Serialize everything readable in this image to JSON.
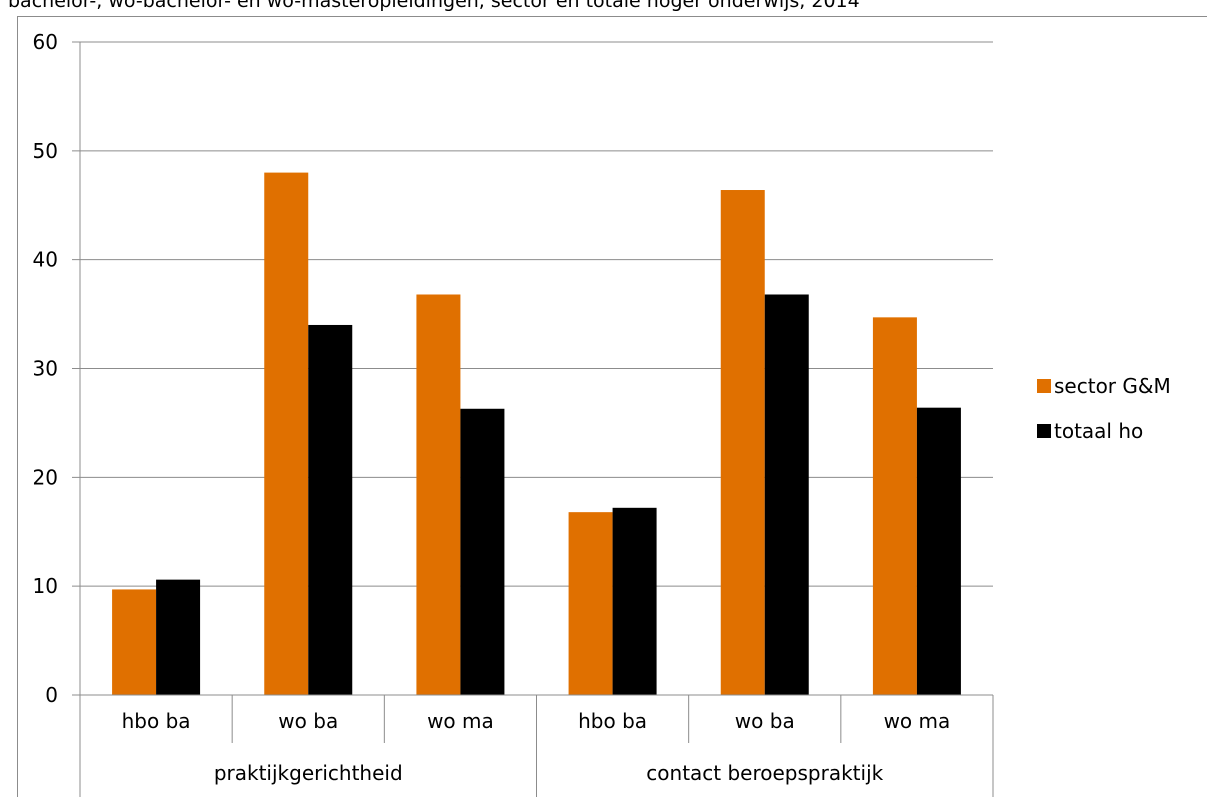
{
  "chart_data": {
    "type": "bar",
    "title": "bachelor-, wo-bachelor- en wo-masteropleidingen, sector en totale hoger onderwijs, 2014",
    "xlabel": "",
    "ylabel": "",
    "ylim": [
      0,
      60
    ],
    "yticks": [
      0,
      10,
      20,
      30,
      40,
      50,
      60
    ],
    "grid": true,
    "legend_position": "right",
    "groups": [
      {
        "label": "praktijkgerichtheid",
        "categories": [
          "hbo ba",
          "wo ba",
          "wo ma"
        ]
      },
      {
        "label": "contact beroepspraktijk",
        "categories": [
          "hbo ba",
          "wo ba",
          "wo ma"
        ]
      }
    ],
    "categories": [
      "hbo ba",
      "wo ba",
      "wo ma",
      "hbo ba",
      "wo ba",
      "wo ma"
    ],
    "series": [
      {
        "name": "sector G&M",
        "color": "#e07000",
        "values": [
          9.7,
          48.0,
          36.8,
          16.8,
          46.4,
          34.7
        ]
      },
      {
        "name": "totaal ho",
        "color": "#000000",
        "values": [
          10.6,
          34.0,
          26.3,
          17.2,
          36.8,
          26.4
        ]
      }
    ]
  }
}
